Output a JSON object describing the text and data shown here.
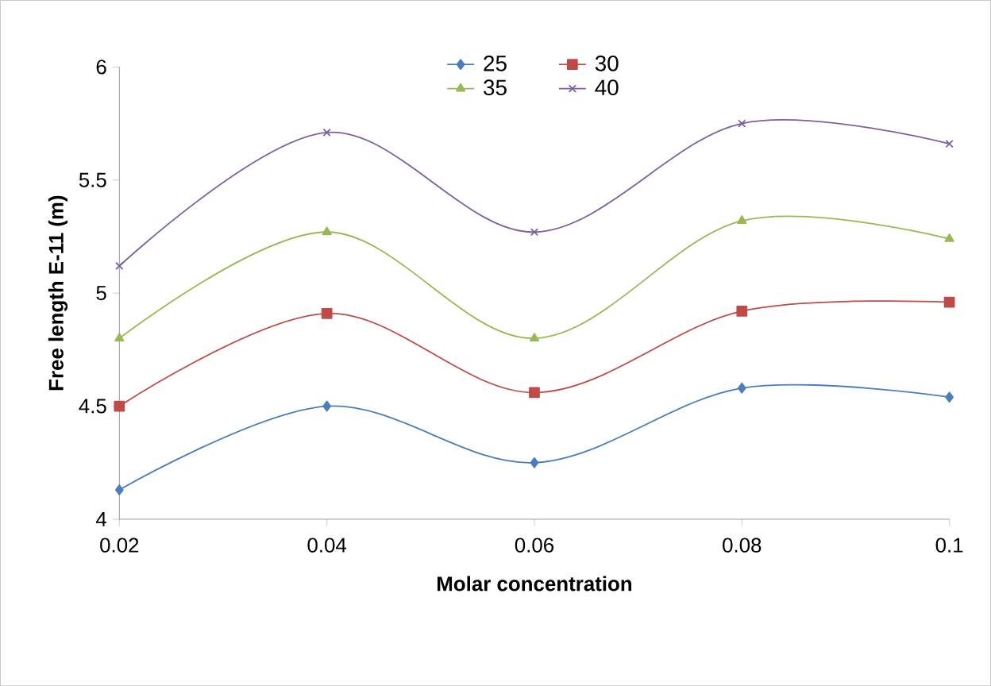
{
  "chart_data": {
    "type": "line",
    "xlabel": "Molar concentration",
    "ylabel": "Free length E-11 (m)",
    "x": [
      0.02,
      0.04,
      0.06,
      0.08,
      0.1
    ],
    "xlim": [
      0.02,
      0.1
    ],
    "xticks": [
      0.02,
      0.04,
      0.06,
      0.08,
      0.1
    ],
    "ylim": [
      4,
      6
    ],
    "yticks": [
      4,
      4.5,
      5,
      5.5,
      6
    ],
    "grid": false,
    "legend": "top",
    "series": [
      {
        "name": "25",
        "color": "#4a7ebb",
        "marker": "diamond",
        "values": [
          4.13,
          4.5,
          4.25,
          4.58,
          4.54
        ]
      },
      {
        "name": "30",
        "color": "#be4b48",
        "marker": "square",
        "values": [
          4.5,
          4.91,
          4.56,
          4.92,
          4.96
        ]
      },
      {
        "name": "35",
        "color": "#98b954",
        "marker": "triangle",
        "values": [
          4.8,
          5.27,
          4.8,
          5.32,
          5.24
        ]
      },
      {
        "name": "40",
        "color": "#7d60a0",
        "marker": "cross",
        "values": [
          5.12,
          5.71,
          5.27,
          5.75,
          5.66
        ]
      }
    ]
  }
}
